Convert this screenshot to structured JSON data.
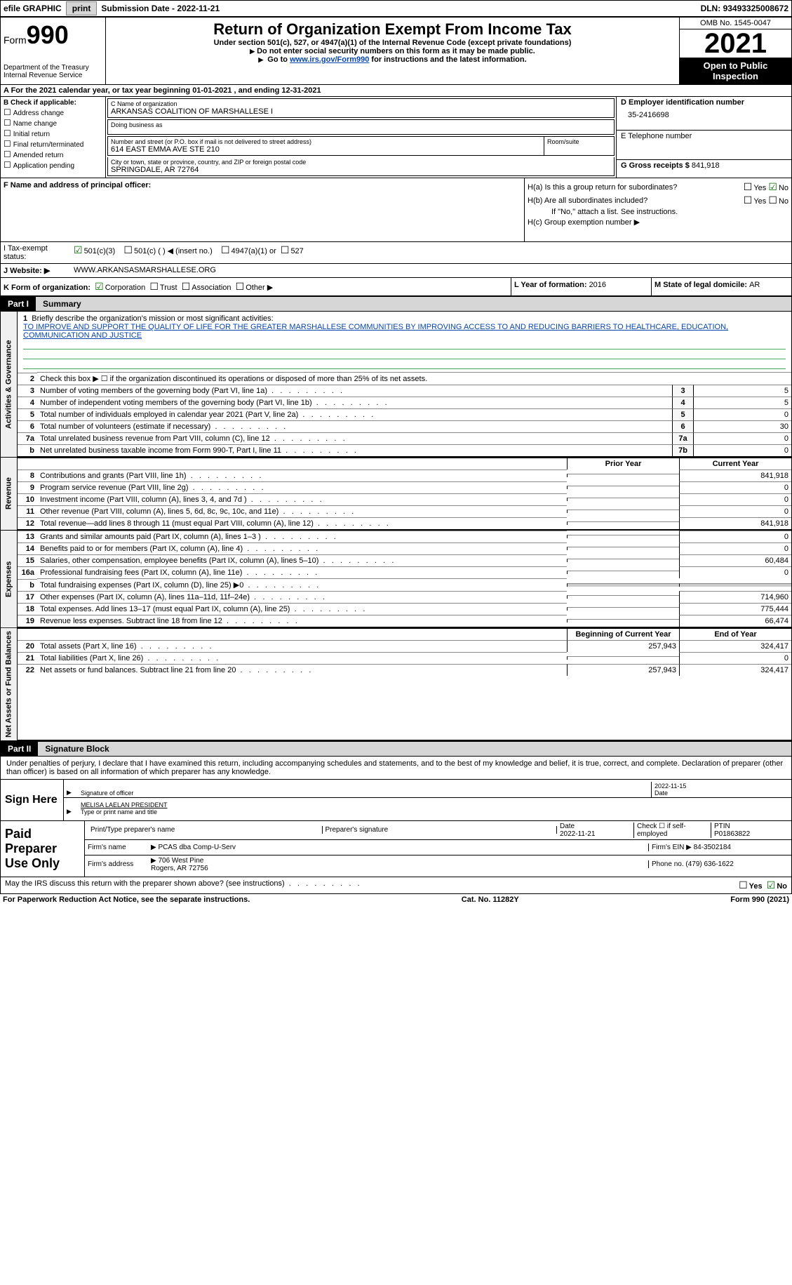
{
  "toolbar": {
    "efile": "efile GRAPHIC",
    "print": "print",
    "subdate_lbl": "Submission Date - ",
    "subdate": "2022-11-21",
    "dln_lbl": "DLN: ",
    "dln": "93493325008672"
  },
  "header": {
    "form_word": "Form",
    "form_num": "990",
    "dept": "Department of the Treasury",
    "irs": "Internal Revenue Service",
    "title": "Return of Organization Exempt From Income Tax",
    "sub1": "Under section 501(c), 527, or 4947(a)(1) of the Internal Revenue Code (except private foundations)",
    "sub2": "Do not enter social security numbers on this form as it may be made public.",
    "sub3_pre": "Go to ",
    "sub3_link": "www.irs.gov/Form990",
    "sub3_post": " for instructions and the latest information.",
    "omb": "OMB No. 1545-0047",
    "year": "2021",
    "inspect1": "Open to Public",
    "inspect2": "Inspection"
  },
  "row_a": "A For the 2021 calendar year, or tax year beginning 01-01-2021   , and ending 12-31-2021",
  "col_b": {
    "lbl": "B Check if applicable:",
    "opts": [
      "Address change",
      "Name change",
      "Initial return",
      "Final return/terminated",
      "Amended return",
      "Application pending"
    ]
  },
  "col_c": {
    "name_lbl": "C Name of organization",
    "name": "ARKANSAS COALITION OF MARSHALLESE I",
    "dba_lbl": "Doing business as",
    "addr_lbl": "Number and street (or P.O. box if mail is not delivered to street address)",
    "addr": "614 EAST EMMA AVE STE 210",
    "room_lbl": "Room/suite",
    "city_lbl": "City or town, state or province, country, and ZIP or foreign postal code",
    "city": "SPRINGDALE, AR  72764"
  },
  "col_d": {
    "lbl": "D Employer identification number",
    "val": "35-2416698"
  },
  "col_e": {
    "lbl": "E Telephone number"
  },
  "col_g": {
    "lbl": "G Gross receipts $",
    "val": "841,918"
  },
  "col_f": {
    "lbl": "F  Name and address of principal officer:"
  },
  "col_h": {
    "ha": "H(a)  Is this a group return for subordinates?",
    "hb": "H(b)  Are all subordinates included?",
    "hb2": "If \"No,\" attach a list. See instructions.",
    "hc": "H(c)  Group exemption number ▶",
    "yes": "Yes",
    "no": "No"
  },
  "row_i": {
    "lbl": "I   Tax-exempt status:",
    "o1": "501(c)(3)",
    "o2": "501(c) (  ) ◀ (insert no.)",
    "o3": "4947(a)(1) or",
    "o4": "527"
  },
  "row_j": {
    "lbl": "J   Website: ▶",
    "val": "WWW.ARKANSASMARSHALLESE.ORG"
  },
  "row_k": {
    "lbl": "K Form of organization:",
    "o1": "Corporation",
    "o2": "Trust",
    "o3": "Association",
    "o4": "Other ▶"
  },
  "row_l": {
    "lbl": "L Year of formation: ",
    "val": "2016"
  },
  "row_m": {
    "lbl": "M State of legal domicile: ",
    "val": "AR"
  },
  "part1": {
    "num": "Part I",
    "title": "Summary"
  },
  "summary": {
    "tab1": "Activities & Governance",
    "tab2": "Revenue",
    "tab3": "Expenses",
    "tab4": "Net Assets or Fund Balances",
    "l1_lbl": "Briefly describe the organization's mission or most significant activities:",
    "l1_txt": "TO IMPROVE AND SUPPORT THE QUALITY OF LIFE FOR THE GREATER MARSHALLESE COMMUNITIES BY IMPROVING ACCESS TO AND REDUCING BARRIERS TO HEALTHCARE, EDUCATION, COMMUNICATION AND JUSTICE",
    "l2": "Check this box ▶ ☐  if the organization discontinued its operations or disposed of more than 25% of its net assets.",
    "lines_a": [
      {
        "n": "3",
        "t": "Number of voting members of the governing body (Part VI, line 1a)",
        "b": "3",
        "v": "5"
      },
      {
        "n": "4",
        "t": "Number of independent voting members of the governing body (Part VI, line 1b)",
        "b": "4",
        "v": "5"
      },
      {
        "n": "5",
        "t": "Total number of individuals employed in calendar year 2021 (Part V, line 2a)",
        "b": "5",
        "v": "0"
      },
      {
        "n": "6",
        "t": "Total number of volunteers (estimate if necessary)",
        "b": "6",
        "v": "30"
      },
      {
        "n": "7a",
        "t": "Total unrelated business revenue from Part VIII, column (C), line 12",
        "b": "7a",
        "v": "0"
      },
      {
        "n": "b",
        "t": "Net unrelated business taxable income from Form 990-T, Part I, line 11",
        "b": "7b",
        "v": "0"
      }
    ],
    "pycy_hdr": {
      "py": "Prior Year",
      "cy": "Current Year"
    },
    "lines_rev": [
      {
        "n": "8",
        "t": "Contributions and grants (Part VIII, line 1h)",
        "py": "",
        "cy": "841,918"
      },
      {
        "n": "9",
        "t": "Program service revenue (Part VIII, line 2g)",
        "py": "",
        "cy": "0"
      },
      {
        "n": "10",
        "t": "Investment income (Part VIII, column (A), lines 3, 4, and 7d )",
        "py": "",
        "cy": "0"
      },
      {
        "n": "11",
        "t": "Other revenue (Part VIII, column (A), lines 5, 6d, 8c, 9c, 10c, and 11e)",
        "py": "",
        "cy": "0"
      },
      {
        "n": "12",
        "t": "Total revenue—add lines 8 through 11 (must equal Part VIII, column (A), line 12)",
        "py": "",
        "cy": "841,918"
      }
    ],
    "lines_exp": [
      {
        "n": "13",
        "t": "Grants and similar amounts paid (Part IX, column (A), lines 1–3 )",
        "py": "",
        "cy": "0"
      },
      {
        "n": "14",
        "t": "Benefits paid to or for members (Part IX, column (A), line 4)",
        "py": "",
        "cy": "0"
      },
      {
        "n": "15",
        "t": "Salaries, other compensation, employee benefits (Part IX, column (A), lines 5–10)",
        "py": "",
        "cy": "60,484"
      },
      {
        "n": "16a",
        "t": "Professional fundraising fees (Part IX, column (A), line 11e)",
        "py": "",
        "cy": "0"
      },
      {
        "n": "b",
        "t": "Total fundraising expenses (Part IX, column (D), line 25) ▶0",
        "py": "shade",
        "cy": "shade"
      },
      {
        "n": "17",
        "t": "Other expenses (Part IX, column (A), lines 11a–11d, 11f–24e)",
        "py": "",
        "cy": "714,960"
      },
      {
        "n": "18",
        "t": "Total expenses. Add lines 13–17 (must equal Part IX, column (A), line 25)",
        "py": "",
        "cy": "775,444"
      },
      {
        "n": "19",
        "t": "Revenue less expenses. Subtract line 18 from line 12",
        "py": "",
        "cy": "66,474"
      }
    ],
    "na_hdr": {
      "py": "Beginning of Current Year",
      "cy": "End of Year"
    },
    "lines_na": [
      {
        "n": "20",
        "t": "Total assets (Part X, line 16)",
        "py": "257,943",
        "cy": "324,417"
      },
      {
        "n": "21",
        "t": "Total liabilities (Part X, line 26)",
        "py": "",
        "cy": "0"
      },
      {
        "n": "22",
        "t": "Net assets or fund balances. Subtract line 21 from line 20",
        "py": "257,943",
        "cy": "324,417"
      }
    ]
  },
  "part2": {
    "num": "Part II",
    "title": "Signature Block"
  },
  "sig": {
    "decl": "Under penalties of perjury, I declare that I have examined this return, including accompanying schedules and statements, and to the best of my knowledge and belief, it is true, correct, and complete. Declaration of preparer (other than officer) is based on all information of which preparer has any knowledge.",
    "sign_here": "Sign Here",
    "sig_of_officer": "Signature of officer",
    "date": "Date",
    "date_val": "2022-11-15",
    "name": "MELISA LAELAN  PRESIDENT",
    "name_lbl": "Type or print name and title"
  },
  "prep": {
    "lbl": "Paid Preparer Use Only",
    "r1": {
      "c1": "Print/Type preparer's name",
      "c2": "Preparer's signature",
      "c3_lbl": "Date",
      "c3": "2022-11-21",
      "c4": "Check ☐ if self-employed",
      "c5_lbl": "PTIN",
      "c5": "P01863822"
    },
    "r2": {
      "c1": "Firm's name",
      "c2": "▶ PCAS dba Comp-U-Serv",
      "c3": "Firm's EIN ▶ 84-3502184"
    },
    "r3": {
      "c1": "Firm's address",
      "c2": "▶ 706 West Pine",
      "c2b": "Rogers, AR  72756",
      "c3": "Phone no. (479) 636-1622"
    }
  },
  "discuss": "May the IRS discuss this return with the preparer shown above? (see instructions)",
  "footer": {
    "pra": "For Paperwork Reduction Act Notice, see the separate instructions.",
    "cat": "Cat. No. 11282Y",
    "form": "Form 990 (2021)"
  }
}
